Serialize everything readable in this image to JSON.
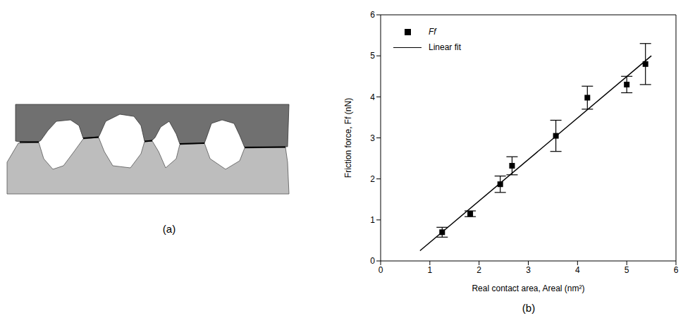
{
  "diagram": {
    "caption": "(a)"
  },
  "chart_data": {
    "type": "scatter",
    "caption": "(b)",
    "x_label": "Real contact area, Areal (nm²)",
    "y_label": "Friction force, Ff (nN)",
    "xlim": [
      0,
      6
    ],
    "xticks": [
      0,
      1,
      2,
      3,
      4,
      5,
      6
    ],
    "ylim": [
      0,
      6
    ],
    "yticks": [
      0,
      1,
      2,
      3,
      4,
      5,
      6
    ],
    "grid": false,
    "legend": "upper left",
    "series": [
      {
        "name": "Ff",
        "type": "scatter",
        "marker": "square",
        "color": "#000000",
        "x": [
          1.25,
          1.82,
          2.43,
          2.67,
          3.56,
          4.2,
          5.0,
          5.38
        ],
        "values": [
          0.7,
          1.15,
          1.87,
          2.32,
          3.05,
          3.98,
          4.3,
          4.8
        ],
        "errors": [
          0.12,
          0.07,
          0.2,
          0.22,
          0.38,
          0.28,
          0.2,
          0.5
        ]
      },
      {
        "name": "Linear fit",
        "type": "line",
        "line_style": "solid",
        "color": "#000000",
        "x": [
          0.8,
          5.5
        ],
        "values": [
          0.25,
          5.0
        ]
      }
    ]
  }
}
